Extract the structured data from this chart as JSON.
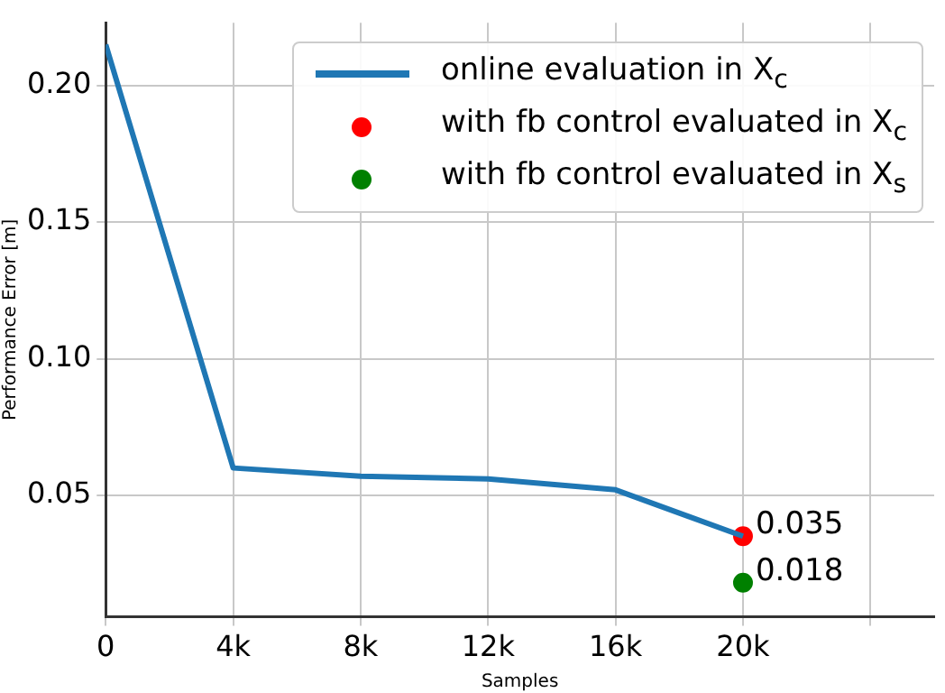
{
  "chart_data": {
    "type": "line",
    "xlabel": "Samples",
    "ylabel": "Performance Error [m]",
    "xlim": [
      0,
      26000
    ],
    "xticks": [
      {
        "value": 0,
        "label": "0"
      },
      {
        "value": 4000,
        "label": "4k"
      },
      {
        "value": 8000,
        "label": "8k"
      },
      {
        "value": 12000,
        "label": "12k"
      },
      {
        "value": 16000,
        "label": "16k"
      },
      {
        "value": 20000,
        "label": "20k"
      },
      {
        "value": 24000,
        "label": null
      }
    ],
    "ylim": [
      0.0055,
      0.223
    ],
    "yticks": [
      {
        "value": 0.05,
        "label": "0.05"
      },
      {
        "value": 0.1,
        "label": "0.10"
      },
      {
        "value": 0.15,
        "label": "0.15"
      },
      {
        "value": 0.2,
        "label": "0.20"
      }
    ],
    "grid": true,
    "legend": "top right",
    "series": [
      {
        "type": "line",
        "name": "online evaluation in X$_{c}$",
        "color": "#1f77b4",
        "marker": "none",
        "x": [
          0,
          4000,
          8000,
          12000,
          16000,
          20000
        ],
        "values": [
          0.215,
          0.06,
          0.057,
          0.056,
          0.052,
          0.035
        ]
      },
      {
        "type": "scatter",
        "name": "with fb control evaluated in X$_{c}$",
        "color": "#ff0000",
        "marker": "circle",
        "x": [
          20000
        ],
        "values": [
          0.035
        ],
        "value_labels": [
          "0.035"
        ]
      },
      {
        "type": "scatter",
        "name": "with fb control evaluated in X$_{s}$",
        "color": "#008000",
        "marker": "circle",
        "x": [
          20000
        ],
        "values": [
          0.018
        ],
        "value_labels": [
          "0.018"
        ]
      }
    ]
  }
}
